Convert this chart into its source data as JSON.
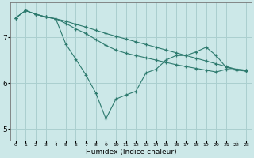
{
  "xlabel": "Humidex (Indice chaleur)",
  "background_color": "#cce8e8",
  "grid_color": "#aacfcf",
  "line_color": "#2d7a6e",
  "x_values": [
    0,
    1,
    2,
    3,
    4,
    5,
    6,
    7,
    8,
    9,
    10,
    11,
    12,
    13,
    14,
    15,
    16,
    17,
    18,
    19,
    20,
    21,
    22,
    23
  ],
  "line_straight": [
    7.42,
    7.58,
    7.5,
    7.44,
    7.4,
    7.35,
    7.28,
    7.22,
    7.15,
    7.08,
    7.02,
    6.96,
    6.9,
    6.84,
    6.78,
    6.72,
    6.66,
    6.6,
    6.54,
    6.48,
    6.42,
    6.36,
    6.3,
    6.28
  ],
  "line_curvy": [
    7.42,
    7.58,
    7.5,
    7.44,
    7.4,
    6.85,
    6.52,
    6.18,
    5.78,
    5.22,
    5.65,
    5.74,
    5.82,
    6.22,
    6.3,
    6.5,
    6.6,
    6.6,
    6.68,
    6.78,
    6.6,
    6.34,
    6.3,
    6.28
  ],
  "line_mid": [
    7.42,
    7.58,
    7.5,
    7.44,
    7.4,
    7.3,
    7.18,
    7.08,
    6.95,
    6.82,
    6.72,
    6.65,
    6.6,
    6.55,
    6.5,
    6.45,
    6.4,
    6.36,
    6.32,
    6.28,
    6.24,
    6.3,
    6.28,
    6.26
  ],
  "ylim": [
    4.75,
    7.75
  ],
  "yticks": [
    5,
    6,
    7
  ],
  "xlim": [
    -0.5,
    23.5
  ],
  "xtick_labels": [
    "0",
    "1",
    "2",
    "3",
    "4",
    "5",
    "6",
    "7",
    "8",
    "9",
    "10",
    "11",
    "12",
    "13",
    "14",
    "15",
    "16",
    "17",
    "18",
    "19",
    "20",
    "21",
    "22",
    "23"
  ]
}
